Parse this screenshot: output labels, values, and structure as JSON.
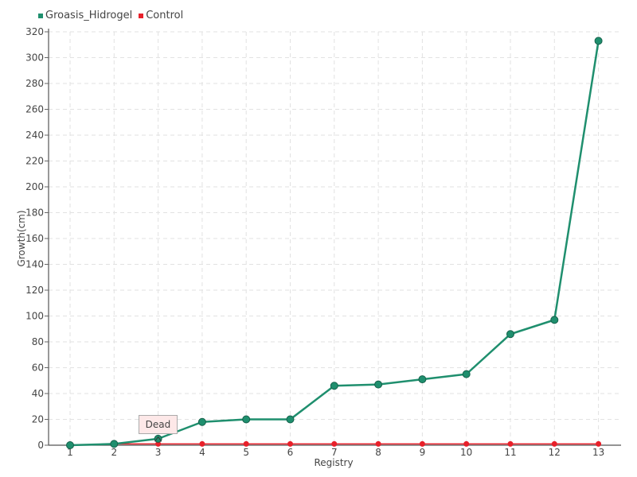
{
  "chart_data": {
    "type": "line",
    "x": [
      1,
      2,
      3,
      4,
      5,
      6,
      7,
      8,
      9,
      10,
      11,
      12,
      13
    ],
    "series": [
      {
        "name": "Groasis_Hidrogel",
        "color": "#1f8f6e",
        "values": [
          0,
          1,
          5,
          18,
          20,
          20,
          46,
          47,
          51,
          55,
          86,
          97,
          313
        ]
      },
      {
        "name": "Control",
        "color": "#e8202a",
        "values": [
          0,
          1,
          1,
          1,
          1,
          1,
          1,
          1,
          1,
          1,
          1,
          1,
          1
        ]
      }
    ],
    "xlabel": "Registry",
    "ylabel": "Growth(cm)",
    "ylim": [
      0,
      320
    ],
    "yticks": [
      0,
      20,
      40,
      60,
      80,
      100,
      120,
      140,
      160,
      180,
      200,
      220,
      240,
      260,
      280,
      300,
      320
    ],
    "grid": true,
    "legend_position": "top-left",
    "annotation": {
      "text": "Dead",
      "series": "Control",
      "x": 3
    }
  }
}
